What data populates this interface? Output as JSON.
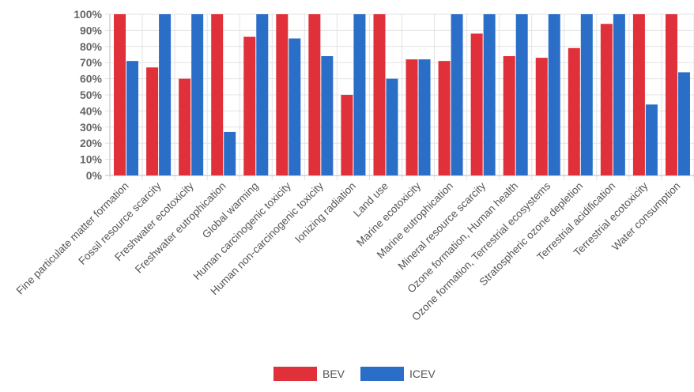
{
  "chart_data": {
    "type": "bar",
    "categories": [
      "Fine particulate matter formation",
      "Fossil resource scarcity",
      "Freshwater ecotoxicity",
      "Freshwater eutrophication",
      "Global warming",
      "Human carcinogenic toxicity",
      "Human non-carcinogenic toxicity",
      "Ionizing radiation",
      "Land use",
      "Marine ecotoxicity",
      "Marine eutrophication",
      "Mineral resource scarcity",
      "Ozone formation, Human health",
      "Ozone formation, Terrestrial ecosystems",
      "Stratospheric ozone depletion",
      "Terrestrial acidification",
      "Terrestrial ecotoxicity",
      "Water consumption"
    ],
    "series": [
      {
        "name": "BEV",
        "color": "#e0303a",
        "values": [
          100,
          67,
          60,
          100,
          86,
          100,
          100,
          50,
          100,
          72,
          71,
          88,
          74,
          73,
          79,
          94,
          100,
          100
        ]
      },
      {
        "name": "ICEV",
        "color": "#2a6ec8",
        "values": [
          71,
          100,
          100,
          27,
          100,
          85,
          74,
          100,
          60,
          72,
          100,
          100,
          100,
          100,
          100,
          100,
          44,
          64
        ]
      }
    ],
    "ylim": [
      0,
      100
    ],
    "yticks": [
      0,
      10,
      20,
      30,
      40,
      50,
      60,
      70,
      80,
      90,
      100
    ],
    "ytick_suffix": "%",
    "grid": true,
    "legend_position": "bottom-center",
    "title": "",
    "xlabel": "",
    "ylabel": ""
  }
}
